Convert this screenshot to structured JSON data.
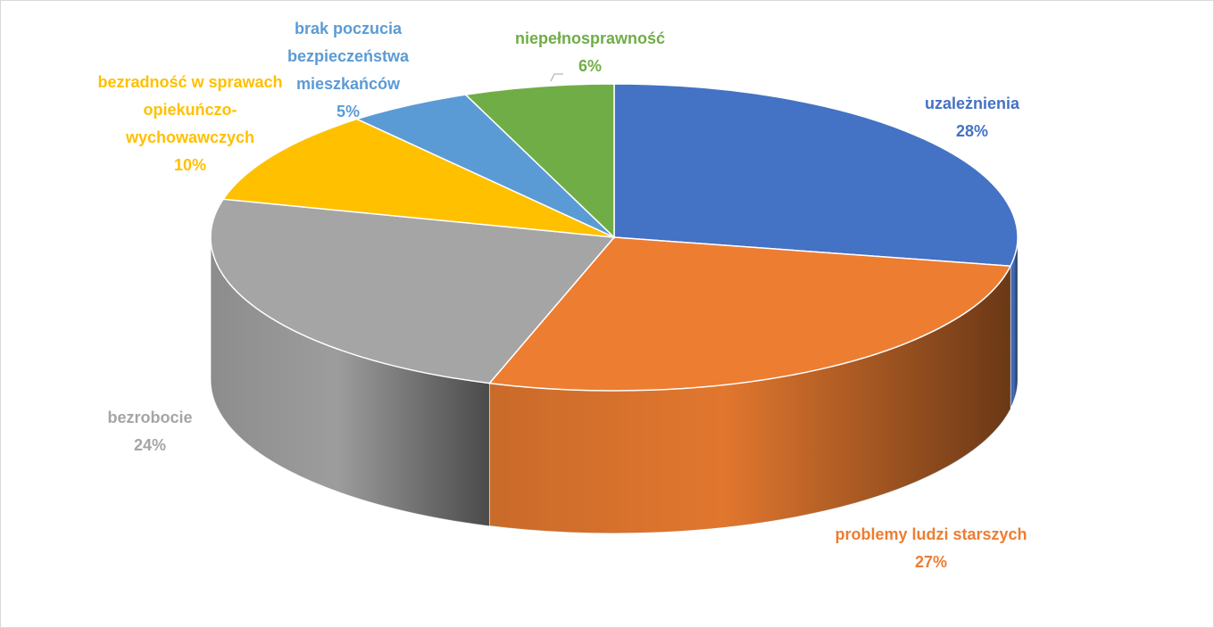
{
  "chart_data": {
    "type": "pie3d",
    "categories": [
      "uzależnienia",
      "problemy ludzi starszych",
      "bezrobocie",
      "bezradność w sprawach opiekuńczo-wychowawczych",
      "brak poczucia bezpieczeństwa mieszkańców",
      "niepełnosprawność"
    ],
    "values": [
      28,
      27,
      24,
      10,
      5,
      6
    ],
    "value_labels": [
      "28%",
      "27%",
      "24%",
      "10%",
      "5%",
      "6%"
    ],
    "colors": [
      "#4472c4",
      "#ed7d31",
      "#a5a5a5",
      "#ffc000",
      "#5b9bd5",
      "#70ad47"
    ]
  }
}
